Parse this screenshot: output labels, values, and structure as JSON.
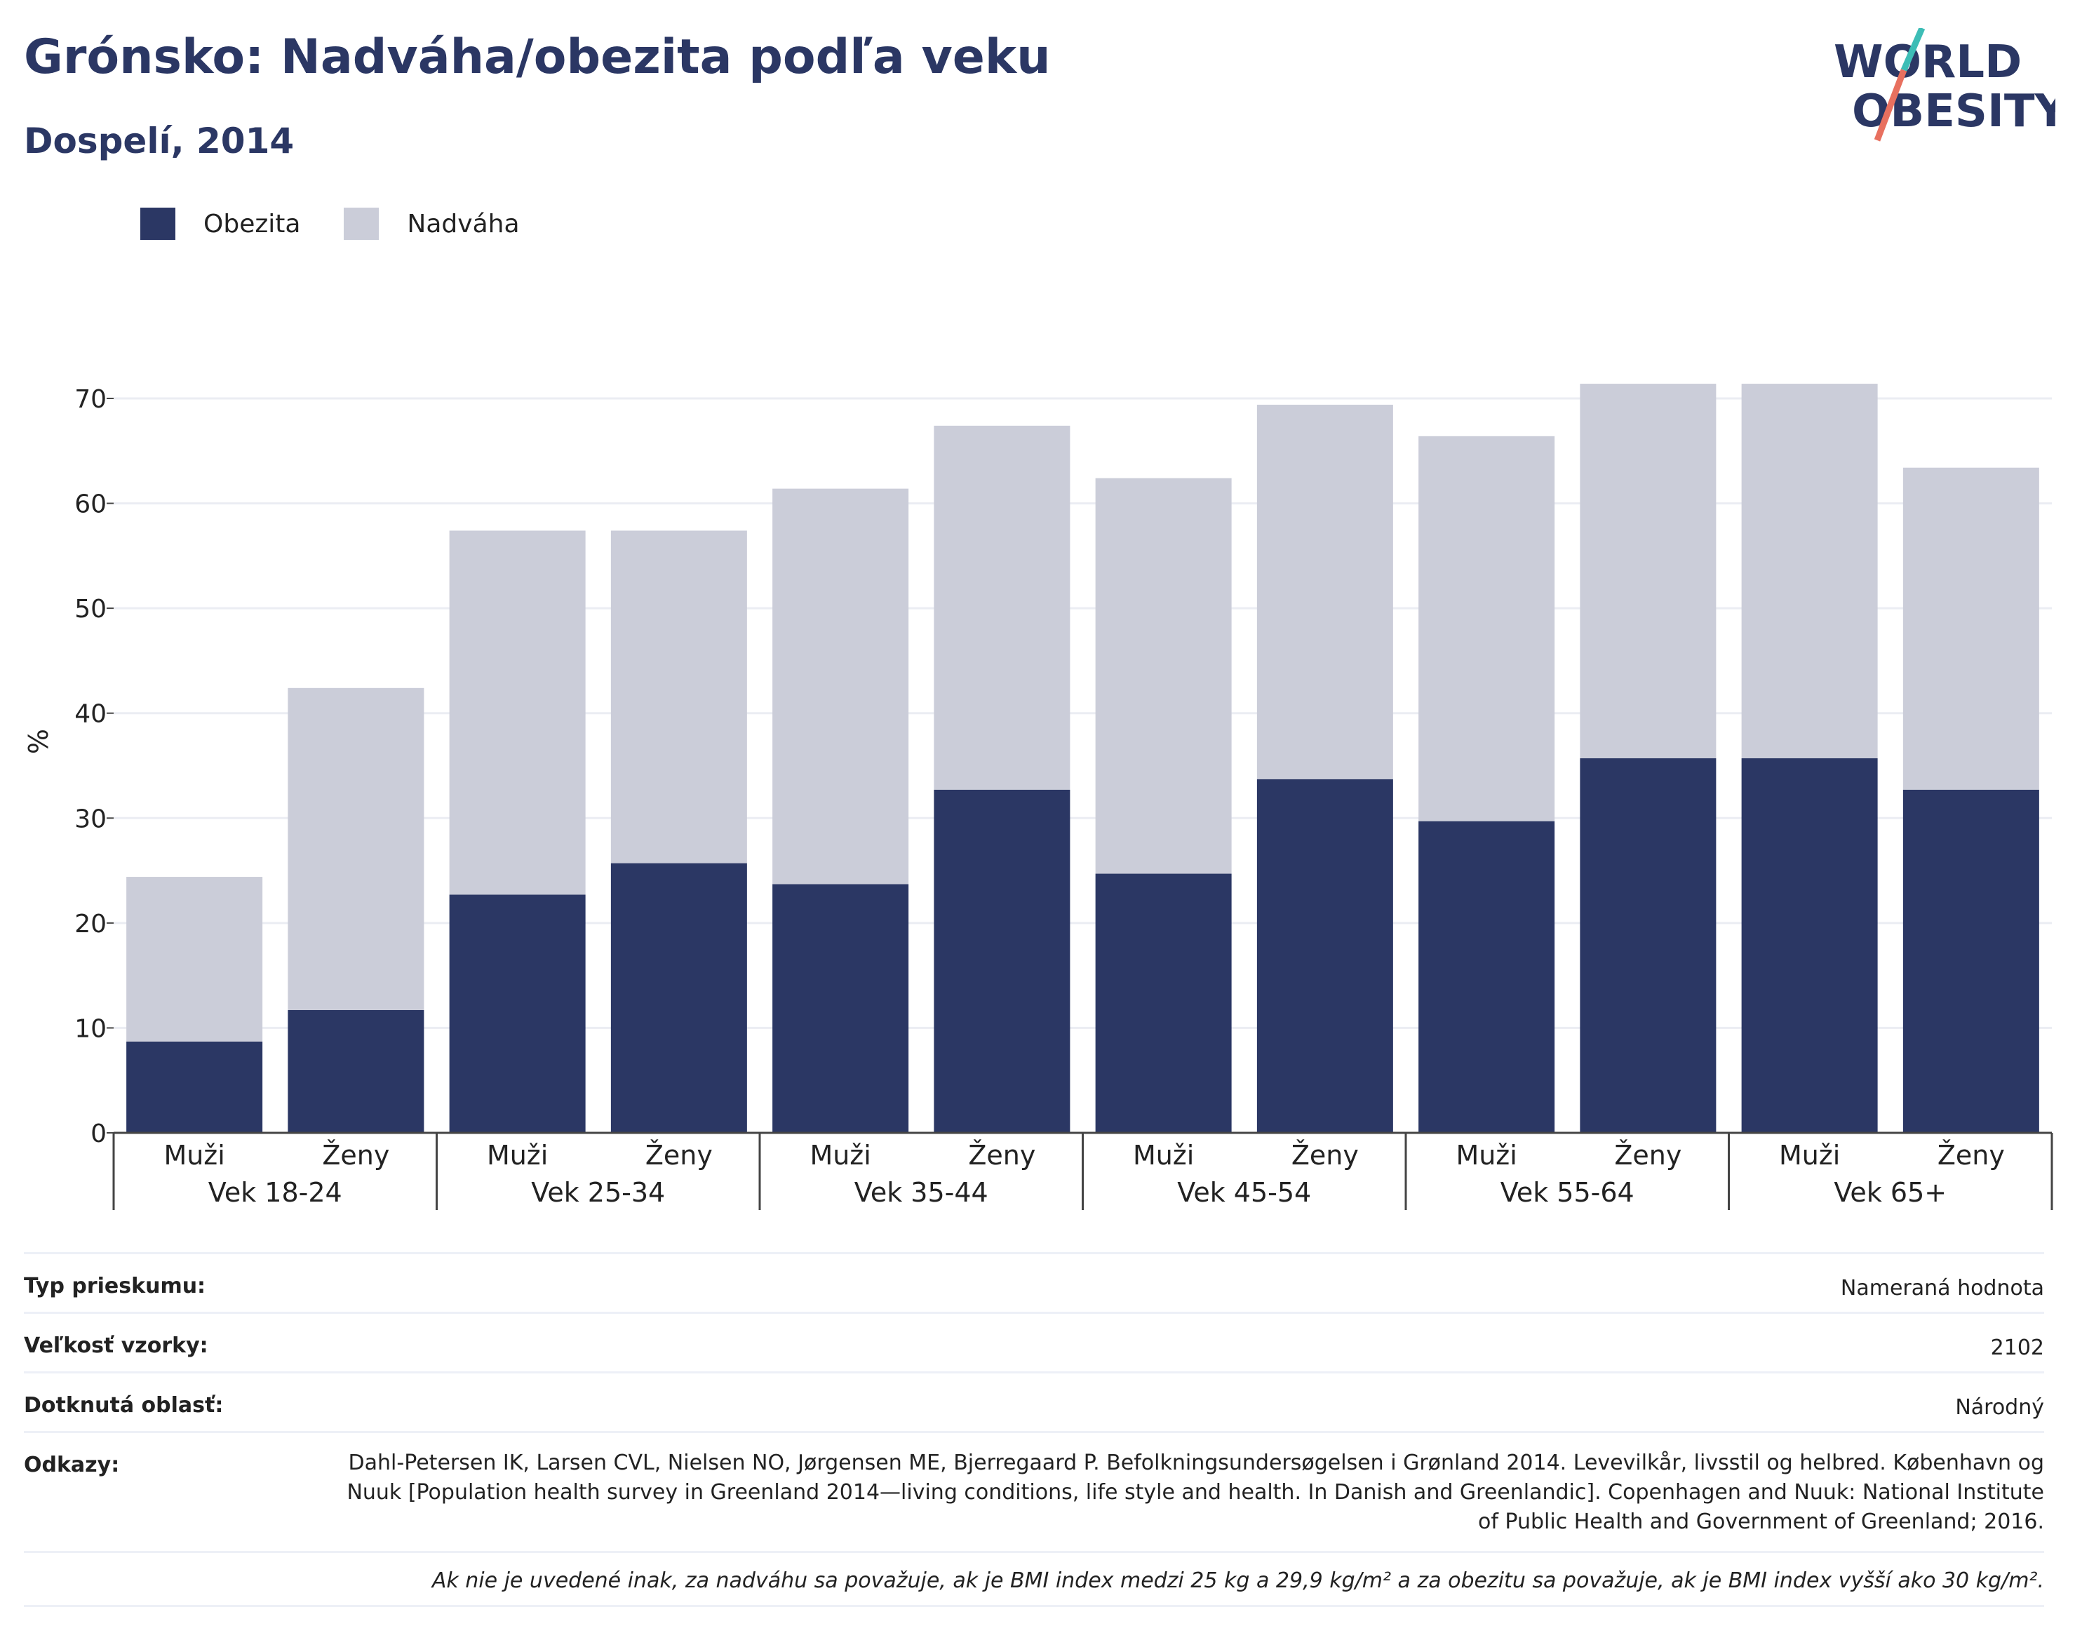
{
  "title": "Grónsko: Nadváha/obezita podľa veku",
  "subtitle": "Dospelí, 2014",
  "logo": {
    "line1": "WORLD",
    "line2": "OBESITY"
  },
  "colors": {
    "obesity": "#2b3764",
    "overweight": "#cbcdd9",
    "grid": "#ebedf3",
    "axis": "#444444"
  },
  "legend": [
    {
      "label": "Obezita",
      "color": "#2b3764"
    },
    {
      "label": "Nadváha",
      "color": "#cbcdd9"
    }
  ],
  "chart_data": {
    "type": "bar",
    "stacked": true,
    "ylabel": "%",
    "ylim": [
      0,
      70
    ],
    "yticks": [
      0,
      10,
      20,
      30,
      40,
      50,
      60,
      70
    ],
    "grid": true,
    "legend_position": "top-left",
    "groups": [
      "Vek 18-24",
      "Vek 25-34",
      "Vek 35-44",
      "Vek 45-54",
      "Vek 55-64",
      "Vek 65+"
    ],
    "categories": [
      "Muži",
      "Ženy",
      "Muži",
      "Ženy",
      "Muži",
      "Ženy",
      "Muži",
      "Ženy",
      "Muži",
      "Ženy",
      "Muži",
      "Ženy"
    ],
    "series": [
      {
        "name": "Obezita",
        "values": [
          8.7,
          11.7,
          22.7,
          25.7,
          23.7,
          32.7,
          24.7,
          33.7,
          29.7,
          35.7,
          35.7,
          32.7
        ]
      },
      {
        "name": "Nadváha",
        "values": [
          15.7,
          30.7,
          34.7,
          31.7,
          37.7,
          34.7,
          37.7,
          35.7,
          36.7,
          35.7,
          35.7,
          30.7
        ]
      }
    ],
    "totals": [
      24.4,
      42.4,
      57.4,
      57.4,
      61.4,
      67.4,
      62.4,
      69.4,
      66.4,
      71.4,
      71.4,
      63.4
    ]
  },
  "meta": {
    "survey_type_label": "Typ prieskumu:",
    "survey_type_value": "Nameraná hodnota",
    "sample_size_label": "Veľkosť vzorky:",
    "sample_size_value": "2102",
    "area_label": "Dotknutá oblasť:",
    "area_value": "Národný",
    "references_label": "Odkazy:",
    "references_value": "Dahl-Petersen IK, Larsen CVL, Nielsen NO, Jørgensen ME, Bjerregaard P. Befolkningsundersøgelsen i Grønland 2014. Levevilkår, livsstil og helbred. København og Nuuk [Population health survey in Greenland 2014—living conditions, life style and health. In Danish and Greenlandic]. Copenhagen and Nuuk: National Institute of Public Health and Government of Greenland; 2016.",
    "note": "Ak nie je uvedené inak, za nadváhu sa považuje, ak je BMI index medzi 25 kg a 29,9 kg/m² a za obezitu sa považuje, ak je BMI index vyšší ako 30 kg/m²."
  }
}
